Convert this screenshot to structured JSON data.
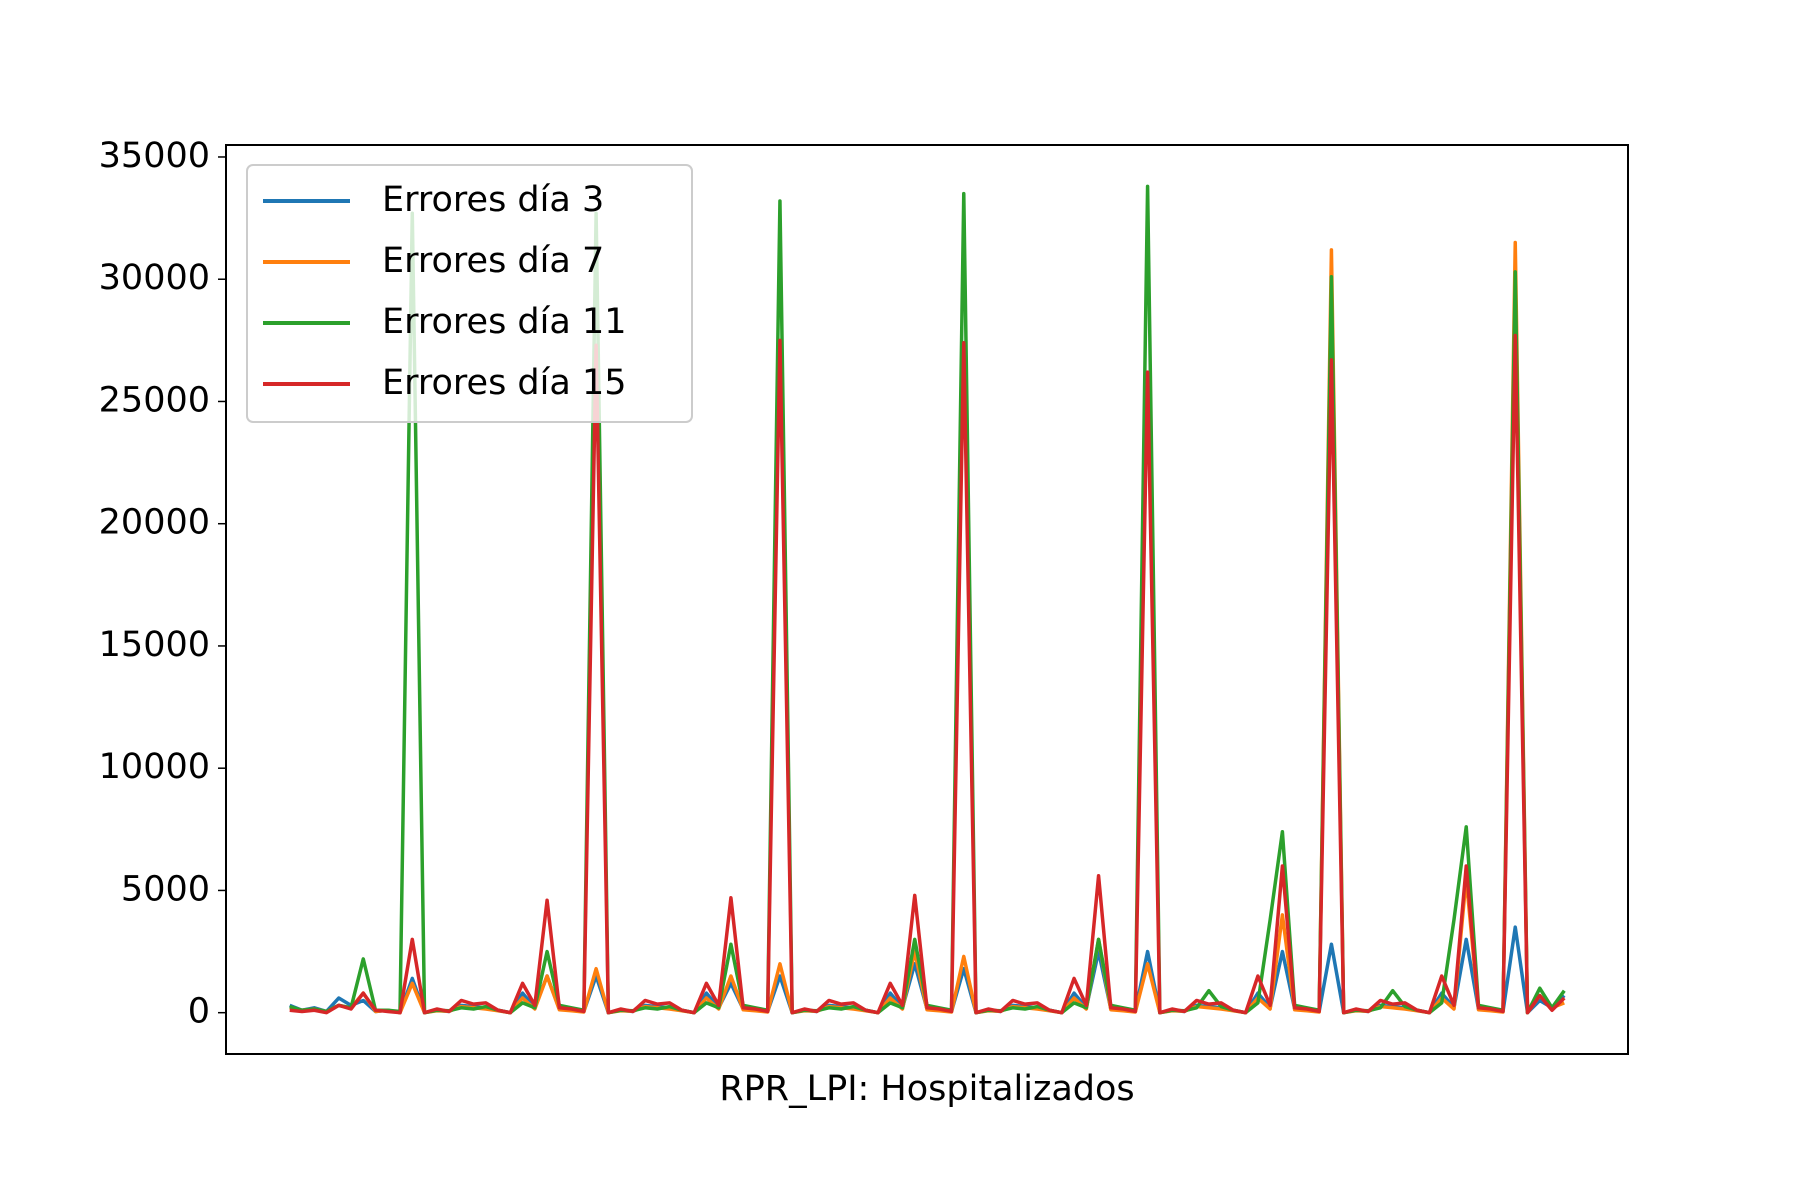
{
  "chart_data": {
    "type": "line",
    "xlabel": "RPR_LPI: Hospitalizados",
    "xlim": [
      -5.2,
      109.2
    ],
    "ylim": [
      -1690,
      35490
    ],
    "yticks": [
      0,
      5000,
      10000,
      15000,
      20000,
      25000,
      30000,
      35000
    ],
    "legend": "upper left",
    "series": [
      {
        "name": "Errores día 3",
        "color": "#1f77b4",
        "values": [
          300,
          100,
          200,
          50,
          600,
          300,
          500,
          50,
          100,
          0,
          1400,
          0,
          100,
          50,
          300,
          250,
          200,
          100,
          0,
          800,
          200,
          1500,
          150,
          100,
          50,
          1500,
          0,
          100,
          50,
          300,
          250,
          200,
          100,
          0,
          800,
          200,
          1200,
          150,
          100,
          50,
          1500,
          0,
          100,
          50,
          300,
          250,
          200,
          100,
          0,
          800,
          200,
          2000,
          150,
          100,
          50,
          1800,
          0,
          100,
          50,
          300,
          250,
          200,
          100,
          0,
          800,
          200,
          2500,
          150,
          100,
          50,
          2500,
          0,
          100,
          50,
          300,
          250,
          200,
          100,
          0,
          800,
          200,
          2500,
          150,
          100,
          50,
          2800,
          0,
          100,
          50,
          300,
          250,
          200,
          100,
          0,
          800,
          200,
          3000,
          150,
          100,
          50,
          3500,
          0,
          500,
          200,
          700
        ]
      },
      {
        "name": "Errores día 7",
        "color": "#ff7f0e",
        "values": [
          200,
          100,
          150,
          50,
          300,
          200,
          800,
          50,
          100,
          0,
          1200,
          0,
          80,
          60,
          250,
          200,
          150,
          80,
          0,
          600,
          150,
          1500,
          120,
          80,
          30,
          1800,
          0,
          80,
          60,
          250,
          200,
          150,
          80,
          0,
          600,
          150,
          1500,
          120,
          80,
          30,
          2000,
          0,
          80,
          60,
          250,
          200,
          150,
          80,
          0,
          600,
          150,
          2500,
          120,
          80,
          30,
          2300,
          0,
          80,
          60,
          250,
          200,
          150,
          80,
          0,
          600,
          150,
          3000,
          120,
          80,
          30,
          2000,
          0,
          80,
          60,
          250,
          200,
          150,
          80,
          0,
          600,
          150,
          4000,
          120,
          80,
          30,
          31200,
          0,
          80,
          60,
          250,
          200,
          150,
          80,
          0,
          600,
          150,
          5500,
          120,
          80,
          30,
          31500,
          0,
          700,
          200,
          400
        ]
      },
      {
        "name": "Errores día 11",
        "color": "#2ca02c",
        "values": [
          250,
          100,
          150,
          50,
          300,
          200,
          2200,
          100,
          100,
          50,
          32700,
          0,
          100,
          80,
          200,
          150,
          250,
          100,
          0,
          400,
          200,
          2500,
          300,
          200,
          100,
          32700,
          0,
          100,
          80,
          200,
          150,
          250,
          100,
          0,
          400,
          200,
          2800,
          300,
          200,
          100,
          33200,
          0,
          100,
          80,
          200,
          150,
          250,
          100,
          0,
          400,
          200,
          3000,
          300,
          200,
          100,
          33500,
          0,
          100,
          80,
          200,
          150,
          250,
          100,
          0,
          400,
          200,
          3000,
          300,
          200,
          100,
          33800,
          0,
          100,
          80,
          200,
          900,
          250,
          100,
          0,
          400,
          3800,
          7400,
          300,
          200,
          100,
          30100,
          0,
          100,
          80,
          200,
          900,
          250,
          100,
          0,
          400,
          3800,
          7600,
          300,
          200,
          100,
          30300,
          0,
          1000,
          200,
          900
        ]
      },
      {
        "name": "Errores día 15",
        "color": "#d62728",
        "values": [
          100,
          50,
          100,
          0,
          300,
          150,
          800,
          100,
          50,
          0,
          3000,
          0,
          150,
          50,
          500,
          350,
          400,
          100,
          0,
          1200,
          300,
          4600,
          200,
          150,
          50,
          27300,
          0,
          150,
          50,
          500,
          350,
          400,
          100,
          0,
          1200,
          300,
          4700,
          200,
          150,
          50,
          27500,
          0,
          150,
          50,
          500,
          350,
          400,
          100,
          0,
          1200,
          300,
          4800,
          200,
          150,
          50,
          27400,
          0,
          150,
          50,
          500,
          350,
          400,
          100,
          0,
          1400,
          300,
          5600,
          200,
          150,
          50,
          26200,
          0,
          150,
          50,
          500,
          350,
          400,
          100,
          0,
          1500,
          300,
          6000,
          200,
          150,
          50,
          26700,
          0,
          150,
          50,
          500,
          350,
          400,
          100,
          0,
          1500,
          300,
          6000,
          200,
          150,
          50,
          27700,
          0,
          700,
          100,
          600
        ]
      }
    ]
  }
}
